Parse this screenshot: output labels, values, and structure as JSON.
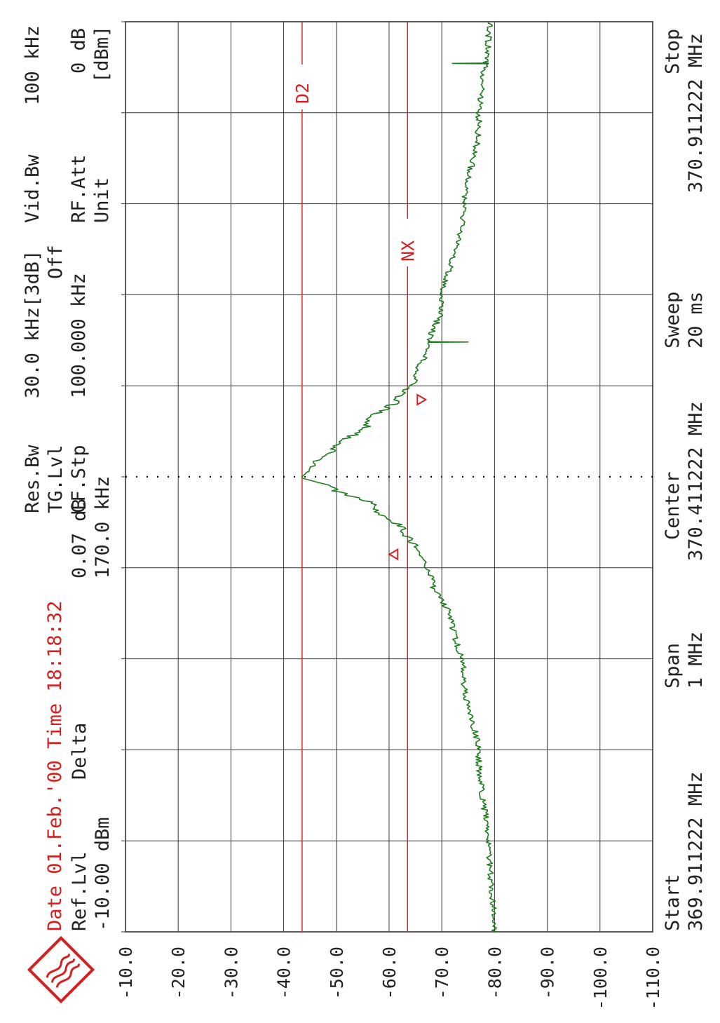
{
  "header": {
    "date_time": "Date 01.Feb.'00  Time 18:18:32",
    "ref_label": "Ref.Lvl",
    "ref_value": "-10.00 dBm",
    "delta_label": "Delta",
    "delta_level": "0.07 dB",
    "delta_freq": "170.0 kHz",
    "res_bw_label": "Res.Bw",
    "tg_lvl_label": "TG.Lvl",
    "cf_stp_label": "CF.Stp",
    "res_bw_value": "30.0 kHz[3dB]",
    "tg_lvl_value": "Off",
    "cf_stp_value": "100.000 kHz",
    "vid_bw_label": "Vid.Bw",
    "rf_att_label": "RF.Att",
    "unit_label": "Unit",
    "vid_bw_value": "100 kHz",
    "rf_att_value": "0 dB",
    "unit_value": "[dBm]"
  },
  "footer": {
    "start_label": "Start",
    "start_value": "369.911222 MHz",
    "span_label": "Span",
    "span_value": "1 MHz",
    "center_label": "Center",
    "center_value": "370.411222 MHz",
    "sweep_label": "Sweep",
    "sweep_value": "20 ms",
    "stop_label": "Stop",
    "stop_value": "370.911222 MHz"
  },
  "marker_labels": {
    "d2": "D2",
    "nx": "NX",
    "delta_symbol": "Δ"
  },
  "colors": {
    "trace": "#1f7a1f",
    "marker": "#d42020",
    "grid": "#333333"
  },
  "chart_data": {
    "type": "line",
    "orientation": "rotated-90-ccw",
    "x_range_mhz": [
      369.911222,
      370.911222
    ],
    "x_center_mhz": 370.411222,
    "ylim": [
      -110,
      -10
    ],
    "y_ticks": [
      "-10.0",
      "-20.0",
      "-30.0",
      "-40.0",
      "-50.0",
      "-60.0",
      "-70.0",
      "-80.0",
      "-90.0",
      "-100.0",
      "-110.0"
    ],
    "grid": true,
    "series": [
      {
        "points": [
          [
            369.911,
            -80
          ],
          [
            370.0,
            -79
          ],
          [
            370.1,
            -77
          ],
          [
            370.2,
            -74
          ],
          [
            370.25,
            -72
          ],
          [
            370.3,
            -68
          ],
          [
            370.33,
            -66
          ],
          [
            370.35,
            -63
          ],
          [
            370.38,
            -57
          ],
          [
            370.4,
            -49
          ],
          [
            370.411,
            -43.5
          ],
          [
            370.42,
            -45
          ],
          [
            370.44,
            -49
          ],
          [
            370.47,
            -56
          ],
          [
            370.5,
            -62
          ],
          [
            370.52,
            -65
          ],
          [
            370.55,
            -67
          ],
          [
            370.6,
            -70
          ],
          [
            370.7,
            -74
          ],
          [
            370.8,
            -77
          ],
          [
            370.911,
            -79
          ]
        ]
      }
    ],
    "markers": {
      "d2_level_dbm": -43.5,
      "nx_level_dbm": -63.5,
      "delta_points_mhz": [
        370.326,
        370.496
      ]
    },
    "spurs": [
      [
        370.56,
        -75.0
      ],
      [
        370.865,
        -72.0
      ]
    ]
  }
}
